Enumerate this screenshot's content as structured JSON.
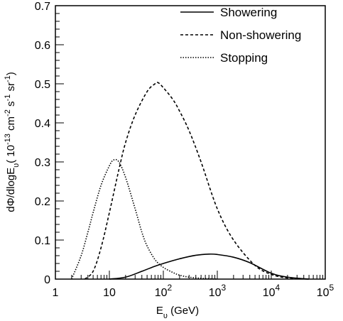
{
  "chart_data": {
    "type": "line",
    "title": "",
    "xlabel": "E_υ (GeV)",
    "ylabel": "dΦ/dlogE_υ (10^-13 cm^-2 s^-1 sr^-1)",
    "x_scale": "log",
    "xlim": [
      1,
      100000
    ],
    "ylim": [
      0,
      0.7
    ],
    "grid": false,
    "legend_position": "top-right",
    "x_ticks": [
      {
        "value": 1,
        "label": "1"
      },
      {
        "value": 10,
        "label": "10"
      },
      {
        "value": 100,
        "label": "10",
        "exp": "2"
      },
      {
        "value": 1000,
        "label": "10",
        "exp": "3"
      },
      {
        "value": 10000,
        "label": "10",
        "exp": "4"
      },
      {
        "value": 100000,
        "label": "10",
        "exp": "5"
      }
    ],
    "y_ticks": [
      {
        "value": 0,
        "label": "0"
      },
      {
        "value": 0.1,
        "label": "0.1"
      },
      {
        "value": 0.2,
        "label": "0.2"
      },
      {
        "value": 0.3,
        "label": "0.3"
      },
      {
        "value": 0.4,
        "label": "0.4"
      },
      {
        "value": 0.5,
        "label": "0.5"
      },
      {
        "value": 0.6,
        "label": "0.6"
      },
      {
        "value": 0.7,
        "label": "0.7"
      }
    ],
    "series": [
      {
        "name": "Showering",
        "style": "solid",
        "x": [
          10,
          20,
          40,
          70,
          100,
          200,
          400,
          700,
          1000,
          2000,
          4000,
          10000,
          20000,
          50000
        ],
        "y": [
          0.0,
          0.005,
          0.02,
          0.033,
          0.04,
          0.052,
          0.061,
          0.064,
          0.063,
          0.056,
          0.042,
          0.015,
          0.005,
          0.0
        ]
      },
      {
        "name": "Non-showering",
        "style": "dashed",
        "x": [
          3.5,
          5,
          7,
          10,
          15,
          20,
          30,
          50,
          70,
          80,
          100,
          150,
          200,
          300,
          500,
          1000,
          2000,
          5000,
          10000,
          20000,
          50000
        ],
        "y": [
          0.0,
          0.02,
          0.08,
          0.17,
          0.28,
          0.35,
          0.42,
          0.48,
          0.5,
          0.503,
          0.49,
          0.46,
          0.43,
          0.38,
          0.3,
          0.18,
          0.1,
          0.035,
          0.012,
          0.003,
          0.0
        ]
      },
      {
        "name": "Stopping",
        "style": "dotted",
        "x": [
          2,
          3,
          4,
          5,
          7,
          10,
          12,
          15,
          20,
          30,
          40,
          50,
          70,
          100,
          150,
          200,
          300,
          500,
          1000
        ],
        "y": [
          0.0,
          0.06,
          0.12,
          0.17,
          0.24,
          0.29,
          0.305,
          0.3,
          0.26,
          0.18,
          0.12,
          0.085,
          0.05,
          0.03,
          0.017,
          0.01,
          0.005,
          0.002,
          0.0
        ]
      }
    ]
  }
}
